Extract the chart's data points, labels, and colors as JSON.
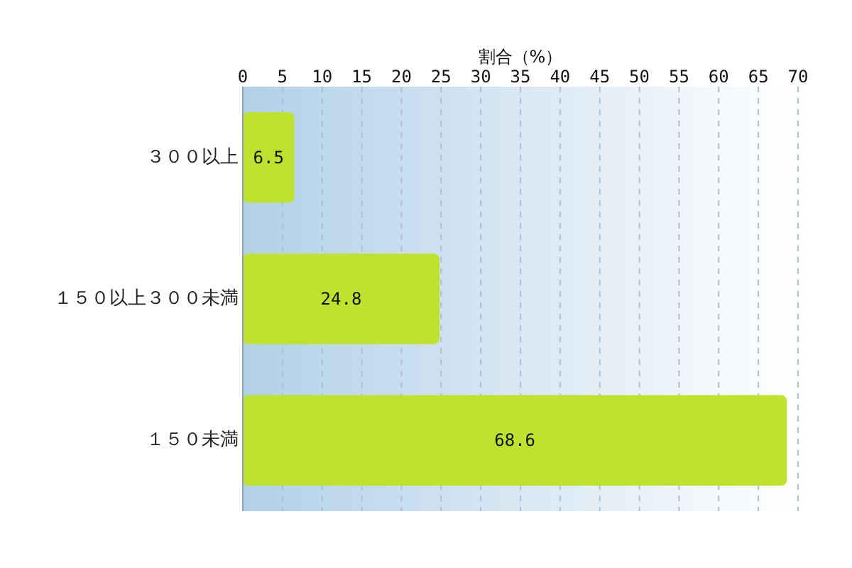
{
  "chart_data": {
    "type": "bar",
    "orientation": "horizontal",
    "xlabel": "割合（%）",
    "categories": [
      "３００以上",
      "１５０以上３００未満",
      "１５０未満"
    ],
    "values": [
      6.5,
      24.8,
      68.6
    ],
    "color": "#bee22e",
    "xlim": [
      0,
      70
    ],
    "xticks": [
      0,
      5,
      10,
      15,
      20,
      25,
      30,
      35,
      40,
      45,
      50,
      55,
      60,
      65,
      70
    ],
    "grid": "x",
    "data_labels": true
  }
}
